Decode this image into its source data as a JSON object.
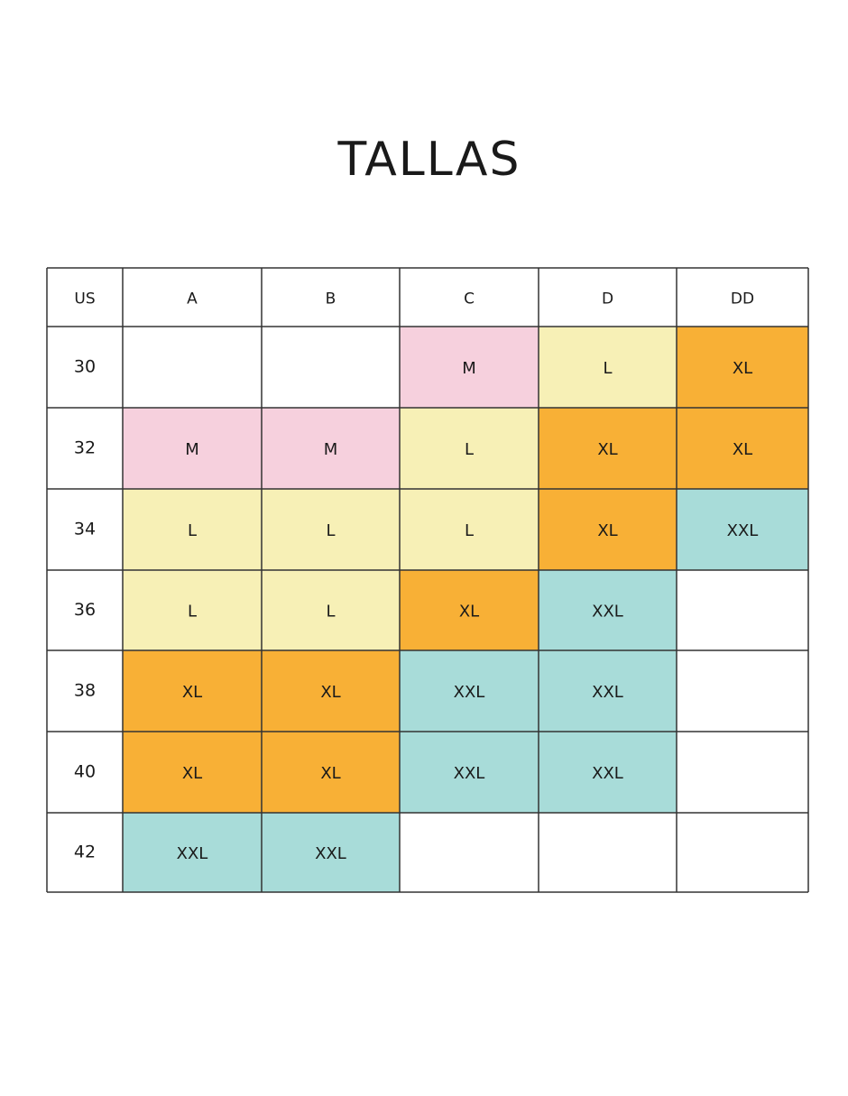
{
  "header": {
    "title": "TALLAS"
  },
  "table": {
    "columns": [
      "US",
      "A",
      "B",
      "C",
      "D",
      "DD"
    ],
    "rows": [
      {
        "label": "30",
        "cells": [
          null,
          null,
          "M",
          "L",
          "XL"
        ]
      },
      {
        "label": "32",
        "cells": [
          "M",
          "M",
          "L",
          "XL",
          "XL"
        ]
      },
      {
        "label": "34",
        "cells": [
          "L",
          "L",
          "L",
          "XL",
          "XXL"
        ]
      },
      {
        "label": "36",
        "cells": [
          "L",
          "L",
          "XL",
          "XXL",
          null
        ]
      },
      {
        "label": "38",
        "cells": [
          "XL",
          "XL",
          "XXL",
          "XXL",
          null
        ]
      },
      {
        "label": "40",
        "cells": [
          "XL",
          "XL",
          "XXL",
          "XXL",
          null
        ]
      },
      {
        "label": "42",
        "cells": [
          "XXL",
          "XXL",
          null,
          null,
          null
        ]
      }
    ],
    "size_colors": {
      "M": "#f6d0dd",
      "L": "#f7f0b6",
      "XL": "#f8b036",
      "XXL": "#a8dcd9"
    }
  }
}
